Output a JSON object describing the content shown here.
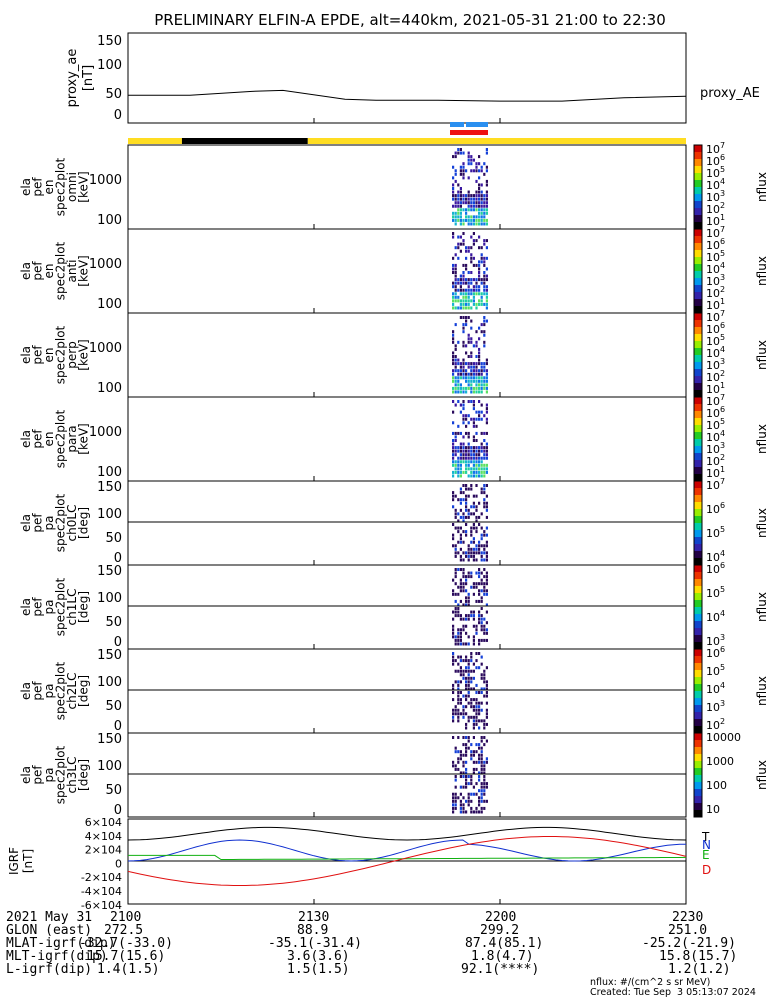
{
  "title": "PRELIMINARY ELFIN-A EPDE, alt=440km, 2021-05-31 21:00 to 22:30",
  "panels": {
    "ae": {
      "ylabel": [
        "proxy_ae",
        "[nT]"
      ],
      "yticks": [
        "150",
        "100",
        "50",
        "0"
      ],
      "legend": "proxy_AE"
    },
    "spec": [
      {
        "ylabel": [
          "ela",
          "pef",
          "en",
          "spec2plot",
          "omni",
          "[keV]"
        ],
        "yticks": [
          "1000",
          "100"
        ]
      },
      {
        "ylabel": [
          "ela",
          "pef",
          "en",
          "spec2plot",
          "anti",
          "[keV]"
        ],
        "yticks": [
          "1000",
          "100"
        ]
      },
      {
        "ylabel": [
          "ela",
          "pef",
          "en",
          "spec2plot",
          "perp",
          "[keV]"
        ],
        "yticks": [
          "1000",
          "100"
        ]
      },
      {
        "ylabel": [
          "ela",
          "pef",
          "en",
          "spec2plot",
          "para",
          "[keV]"
        ],
        "yticks": [
          "1000",
          "100"
        ]
      },
      {
        "ylabel": [
          "ela",
          "pef",
          "pa",
          "spec2plot",
          "ch0LC",
          "[deg]"
        ],
        "yticks": [
          "150",
          "100",
          "50",
          "0"
        ]
      },
      {
        "ylabel": [
          "ela",
          "pef",
          "pa",
          "spec2plot",
          "ch1LC",
          "[deg]"
        ],
        "yticks": [
          "150",
          "100",
          "50",
          "0"
        ]
      },
      {
        "ylabel": [
          "ela",
          "pef",
          "pa",
          "spec2plot",
          "ch2LC",
          "[deg]"
        ],
        "yticks": [
          "150",
          "100",
          "50",
          "0"
        ]
      },
      {
        "ylabel": [
          "ela",
          "pef",
          "pa",
          "spec2plot",
          "ch3LC",
          "[deg]"
        ],
        "yticks": [
          "150",
          "100",
          "50",
          "0"
        ]
      }
    ],
    "igrf": {
      "ylabel": [
        "IGRF",
        "[nT]"
      ],
      "legend": [
        "T",
        "N",
        "E",
        "D"
      ]
    }
  },
  "colorbars": [
    {
      "label": "nflux",
      "ticks": [
        "10^7",
        "10^6",
        "10^5",
        "10^4",
        "10^3",
        "10^2",
        "10^1"
      ]
    },
    {
      "label": "nflux",
      "ticks": [
        "10^7",
        "10^6",
        "10^5",
        "10^4",
        "10^3",
        "10^2",
        "10^1"
      ]
    },
    {
      "label": "nflux",
      "ticks": [
        "10^7",
        "10^6",
        "10^5",
        "10^4",
        "10^3",
        "10^2",
        "10^1"
      ]
    },
    {
      "label": "nflux",
      "ticks": [
        "10^7",
        "10^6",
        "10^5",
        "10^4",
        "10^3",
        "10^2",
        "10^1"
      ]
    },
    {
      "label": "nflux",
      "ticks": [
        "10^7",
        "10^6",
        "10^5",
        "10^4"
      ]
    },
    {
      "label": "nflux",
      "ticks": [
        "10^6",
        "10^5",
        "10^4",
        "10^3"
      ]
    },
    {
      "label": "nflux",
      "ticks": [
        "10^6",
        "10^5",
        "10^4",
        "10^3",
        "10^2"
      ]
    },
    {
      "label": "nflux",
      "ticks": [
        "10000",
        "1000",
        "100",
        "10"
      ]
    }
  ],
  "timeline_labels": [
    "2021 May 31",
    "GLON (east)",
    "MLAT-igrf(dip)",
    "MLT-igrf(dip)",
    "L-igrf(dip)"
  ],
  "timeline_columns": [
    {
      "time": "2100",
      "values": [
        "272.5",
        "-32.7(-33.0)",
        "15.7(15.6)",
        "1.4(1.5)"
      ]
    },
    {
      "time": "2130",
      "values": [
        "88.9",
        "-35.1(-31.4)",
        "3.6(3.6)",
        "1.5(1.5)"
      ]
    },
    {
      "time": "2200",
      "values": [
        "299.2",
        "87.4(85.1)",
        "1.8(4.7)",
        "92.1(****)"
      ]
    },
    {
      "time": "2230",
      "values": [
        "251.0",
        "-25.2(-21.9)",
        "15.8(15.7)",
        "1.2(1.2)"
      ]
    }
  ],
  "footer": {
    "units": "nflux: #/(cm^2 s sr MeV)",
    "created": "Created: Tue Sep  3 05:13:07 2024"
  },
  "chart_data": {
    "type": "line",
    "x_unit": "UT time HHMM on 2021-05-31",
    "x_range": [
      "2100",
      "2230"
    ],
    "series_ae": {
      "name": "proxy_AE",
      "x_min": [
        0,
        10,
        20,
        25,
        35,
        40,
        50,
        60,
        70,
        80,
        90
      ],
      "y_nT": [
        40,
        40,
        48,
        50,
        32,
        30,
        30,
        28,
        28,
        35,
        38
      ]
    },
    "igrf": {
      "ylim": [
        -60000,
        60000
      ],
      "yticks": [
        "6x10^4",
        "4x10^4",
        "2x10^4",
        "0",
        "-2x10^4",
        "-4x10^4",
        "-6x10^4"
      ],
      "series": [
        {
          "name": "T",
          "color": "#000000"
        },
        {
          "name": "N",
          "color": "#1030d0"
        },
        {
          "name": "E",
          "color": "#10b010"
        },
        {
          "name": "D",
          "color": "#e01010"
        }
      ]
    },
    "science_zone_bar": {
      "segments": [
        {
          "start_min": 0,
          "end_min": 8.7,
          "color": "#ffdd22"
        },
        {
          "start_min": 8.7,
          "end_min": 29,
          "color": "#000000"
        },
        {
          "start_min": 29,
          "end_min": 90,
          "color": "#ffdd22"
        }
      ]
    },
    "colors": {
      "yellow": "#ffdd22",
      "blue": "#2a8ff0",
      "red": "#ee1111"
    }
  }
}
